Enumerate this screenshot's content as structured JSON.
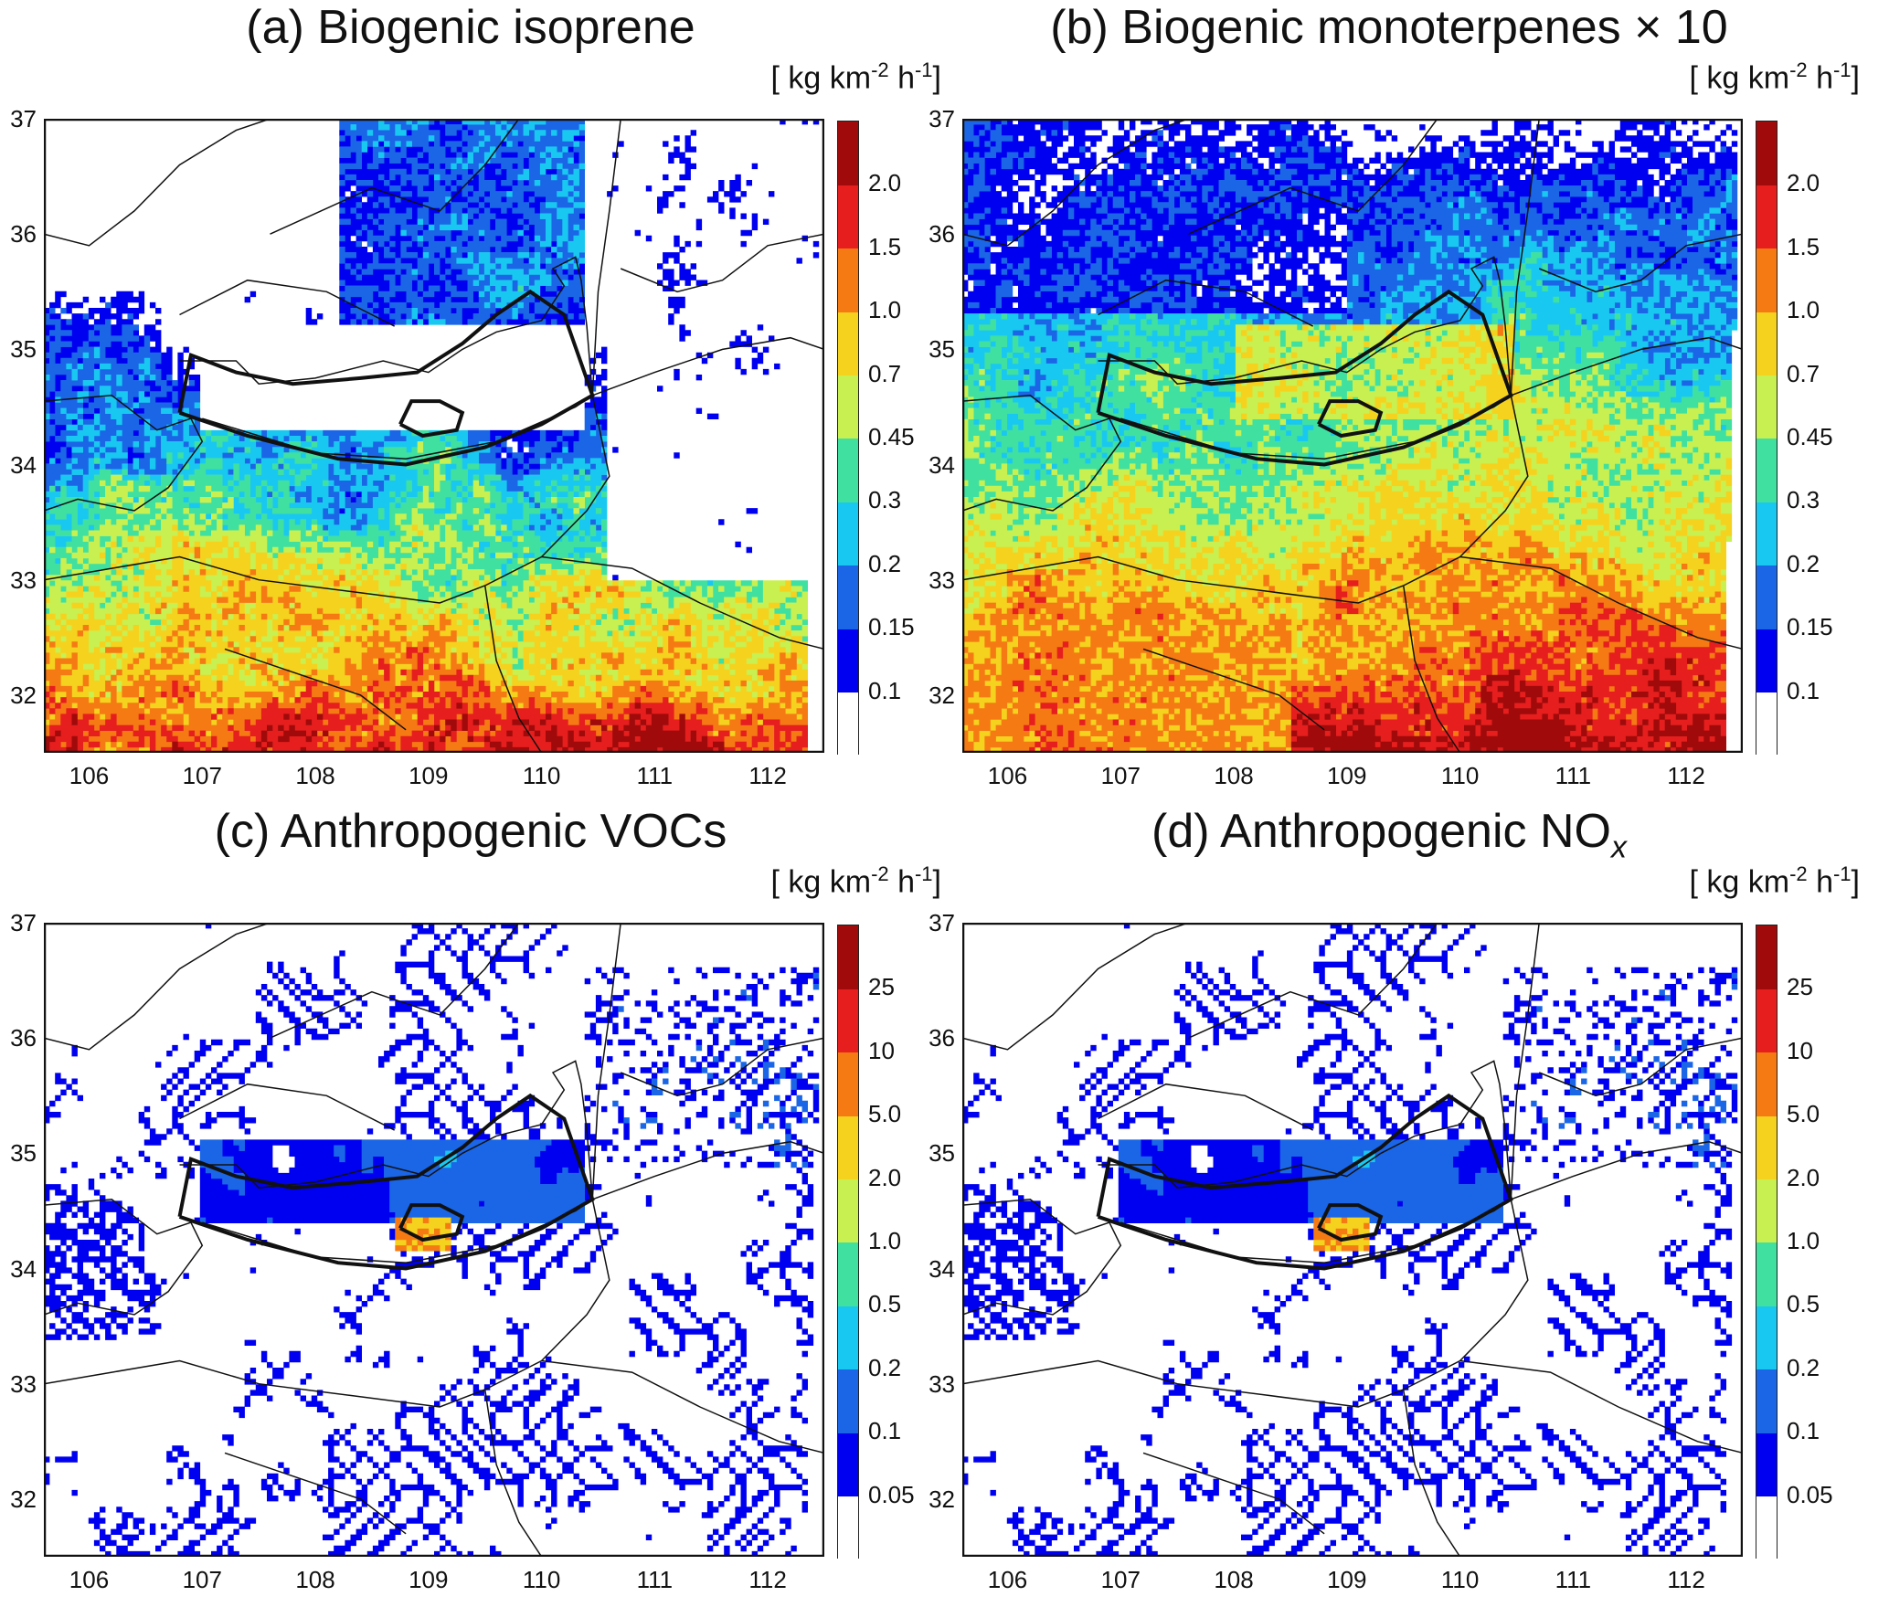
{
  "figure": {
    "unit_text": "[ kg km",
    "unit_exp1": "-2",
    "unit_mid": " h",
    "unit_exp2": "-1",
    "unit_end": "]",
    "y_ticks": [
      "37",
      "36",
      "35",
      "34",
      "33",
      "32"
    ],
    "x_ticks": [
      "106",
      "107",
      "108",
      "109",
      "110",
      "111",
      "112"
    ],
    "lon_range": [
      105.6,
      112.5
    ],
    "lat_range": [
      31.5,
      37.0
    ]
  },
  "biogenic_colors": [
    "#ffffff",
    "#0000f0",
    "#1a66e6",
    "#19c8f0",
    "#40e0a0",
    "#c8f050",
    "#f5d21e",
    "#f57a14",
    "#e61e1e",
    "#a00a0a"
  ],
  "anthro_colors": [
    "#ffffff",
    "#0000f0",
    "#1a66e6",
    "#19c8f0",
    "#40e0a0",
    "#c8f050",
    "#f5d21e",
    "#f57a14",
    "#e61e1e",
    "#a00a0a"
  ],
  "panels": [
    {
      "id": "a",
      "title": "(a) Biogenic isoprene",
      "title_sub": "",
      "legend_labels": [
        "0.1",
        "0.15",
        "0.2",
        "0.3",
        "0.45",
        "0.7",
        "1.0",
        "1.5",
        "2.0"
      ],
      "pattern": "isoprene"
    },
    {
      "id": "b",
      "title": "(b) Biogenic monoterpenes × 10",
      "title_sub": "",
      "legend_labels": [
        "0.1",
        "0.15",
        "0.2",
        "0.3",
        "0.45",
        "0.7",
        "1.0",
        "1.5",
        "2.0"
      ],
      "pattern": "monoterpene"
    },
    {
      "id": "c",
      "title": "(c) Anthropogenic VOCs",
      "title_sub": "",
      "legend_labels": [
        "0.05",
        "0.1",
        "0.2",
        "0.5",
        "1.0",
        "2.0",
        "5.0",
        "10",
        "25"
      ],
      "pattern": "anthro"
    },
    {
      "id": "d",
      "title": "(d) Anthropogenic NO",
      "title_sub": "x",
      "legend_labels": [
        "0.05",
        "0.1",
        "0.2",
        "0.5",
        "1.0",
        "2.0",
        "5.0",
        "10",
        "25"
      ],
      "pattern": "anthro"
    }
  ]
}
